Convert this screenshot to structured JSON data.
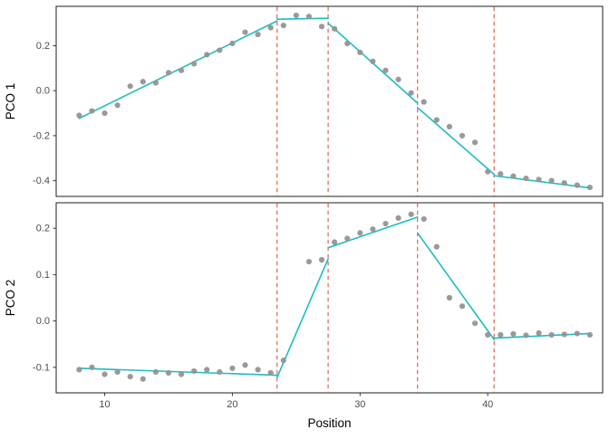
{
  "figure": {
    "xlabel": "Position",
    "xlim": [
      6.2,
      49.0
    ],
    "xticks": {
      "values": [
        10,
        20,
        30,
        40
      ],
      "labels": [
        "10",
        "20",
        "30",
        "40"
      ]
    },
    "colors": {
      "point": "#949494",
      "fit_line": "#1CBDC2",
      "breakpoint_line": "#E0614E",
      "panel_border": "#333333",
      "tick_text": "#4D4D4D",
      "axis_title": "#000000",
      "background": "#FFFFFF"
    }
  },
  "chart_data": [
    {
      "type": "scatter",
      "title": "",
      "xlabel": "Position",
      "ylabel": "PCO 1",
      "ylim": [
        -0.47,
        0.375
      ],
      "yticks": {
        "values": [
          -0.4,
          -0.2,
          0.0,
          0.2
        ],
        "labels": [
          "-0.4",
          "-0.2",
          "0.0",
          "0.2"
        ]
      },
      "x": [
        8,
        9,
        10,
        11,
        12,
        13,
        14,
        15,
        16,
        17,
        18,
        19,
        20,
        21,
        22,
        23,
        24,
        25,
        26,
        27,
        28,
        29,
        30,
        31,
        32,
        33,
        34,
        35,
        36,
        37,
        38,
        39,
        40,
        41,
        42,
        43,
        44,
        45,
        46,
        47,
        48
      ],
      "y": [
        -0.11,
        -0.09,
        -0.1,
        -0.065,
        0.02,
        0.04,
        0.035,
        0.08,
        0.09,
        0.12,
        0.16,
        0.18,
        0.21,
        0.26,
        0.25,
        0.28,
        0.29,
        0.335,
        0.33,
        0.285,
        0.275,
        0.21,
        0.17,
        0.13,
        0.09,
        0.05,
        -0.01,
        -0.05,
        -0.13,
        -0.16,
        -0.2,
        -0.23,
        -0.36,
        -0.37,
        -0.38,
        -0.39,
        -0.395,
        -0.4,
        -0.41,
        -0.42,
        -0.43
      ],
      "segments": [
        [
          8,
          -0.123,
          23.5,
          0.31
        ],
        [
          23.5,
          0.318,
          27.5,
          0.322
        ],
        [
          27.5,
          0.3,
          34.5,
          -0.055
        ],
        [
          34.5,
          -0.075,
          40.5,
          -0.372
        ],
        [
          40.5,
          -0.378,
          48,
          -0.432
        ]
      ],
      "breakpoints": [
        23.5,
        27.5,
        34.5,
        40.5
      ]
    },
    {
      "type": "scatter",
      "title": "",
      "xlabel": "Position",
      "ylabel": "PCO 2",
      "ylim": [
        -0.155,
        0.255
      ],
      "yticks": {
        "values": [
          -0.1,
          0.0,
          0.1,
          0.2
        ],
        "labels": [
          "-0.1",
          "0.0",
          "0.1",
          "0.2"
        ]
      },
      "x": [
        8,
        9,
        10,
        11,
        12,
        13,
        14,
        15,
        16,
        17,
        18,
        19,
        20,
        21,
        22,
        23,
        24,
        25,
        26,
        27,
        28,
        29,
        30,
        31,
        32,
        33,
        34,
        35,
        36,
        37,
        38,
        39,
        40,
        41,
        42,
        43,
        44,
        45,
        46,
        47,
        48
      ],
      "y": [
        -0.105,
        -0.1,
        -0.115,
        -0.11,
        -0.12,
        -0.125,
        -0.11,
        -0.112,
        -0.115,
        -0.108,
        -0.105,
        -0.11,
        -0.102,
        -0.095,
        -0.105,
        -0.112,
        -0.085,
        null,
        0.128,
        0.132,
        0.17,
        0.178,
        0.19,
        0.198,
        0.21,
        0.222,
        0.23,
        0.22,
        0.16,
        0.05,
        0.032,
        -0.005,
        -0.03,
        -0.03,
        -0.028,
        -0.031,
        -0.026,
        -0.03,
        -0.029,
        -0.027,
        -0.03
      ],
      "segments": [
        [
          8,
          -0.102,
          23.5,
          -0.117
        ],
        [
          23.5,
          -0.122,
          27.5,
          0.134
        ],
        [
          27.5,
          0.158,
          34.5,
          0.224
        ],
        [
          34.5,
          0.19,
          40.5,
          -0.04
        ],
        [
          40.5,
          -0.037,
          48,
          -0.027
        ]
      ],
      "breakpoints": [
        23.5,
        27.5,
        34.5,
        40.5
      ]
    }
  ]
}
